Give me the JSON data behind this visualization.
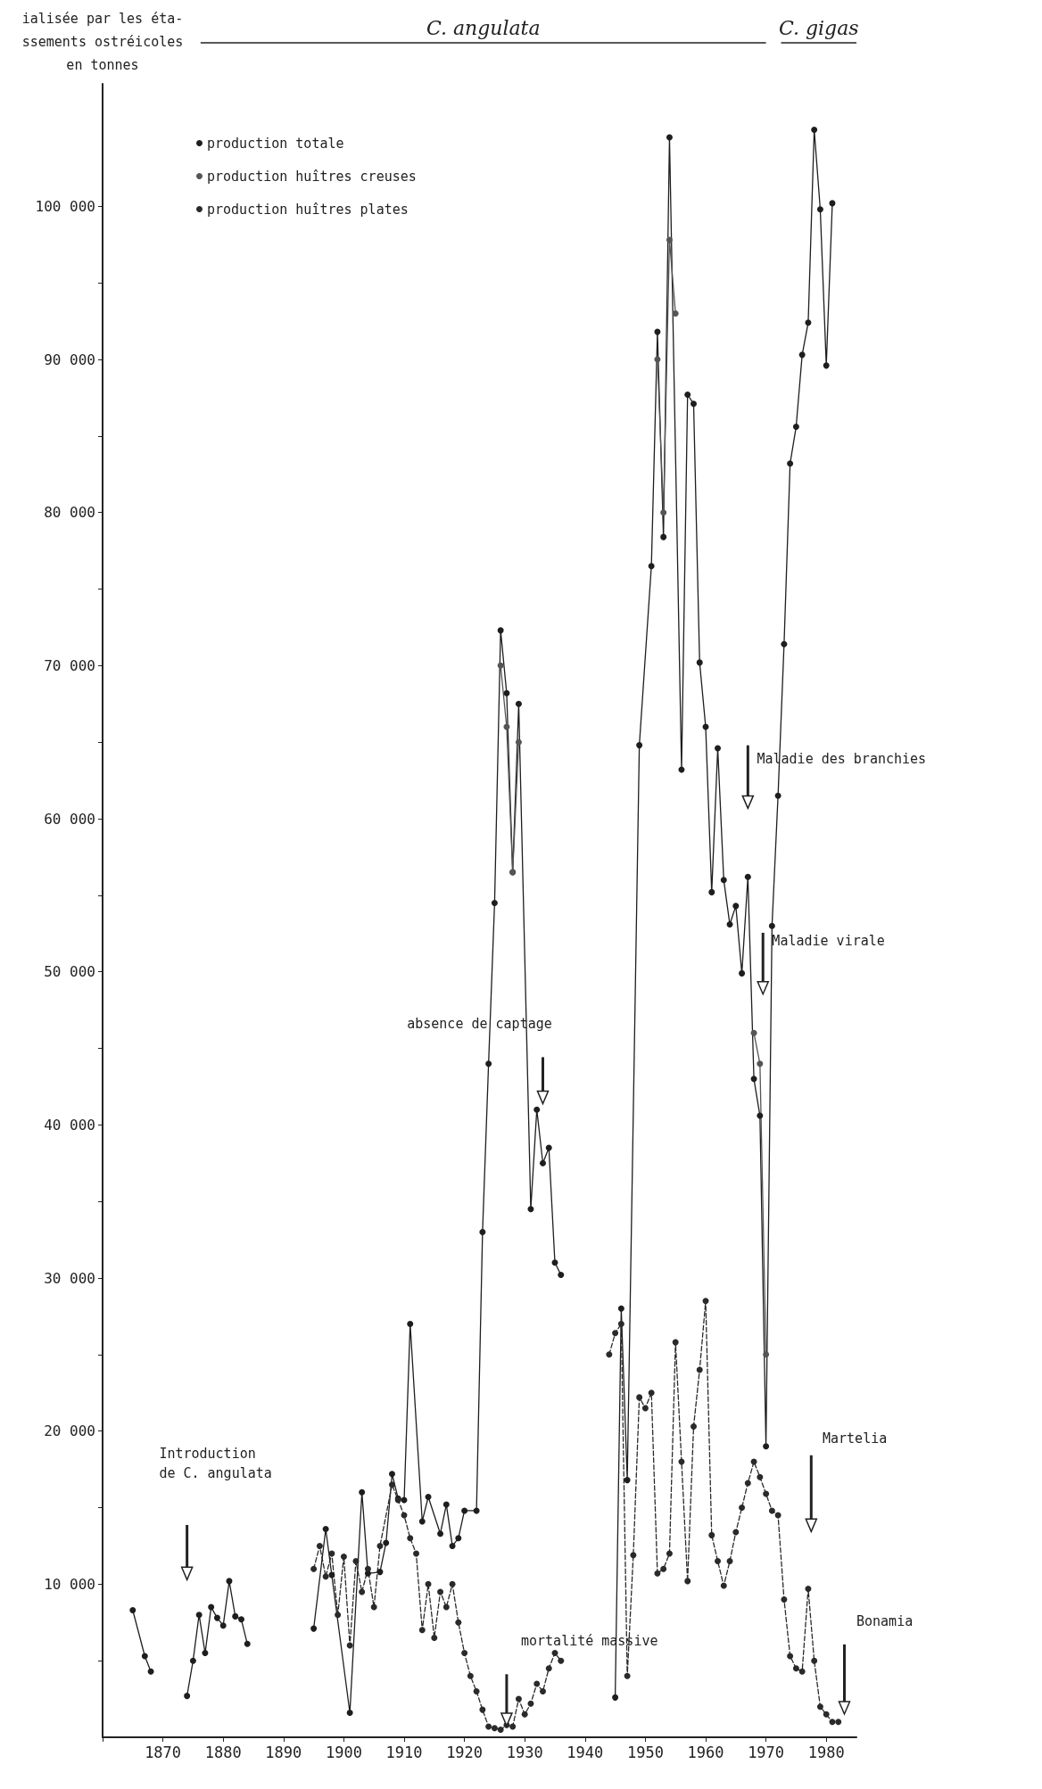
{
  "chart_data": {
    "type": "line",
    "ylabel": "ialisée par les éta-\nssements ostréicoles\nen tonnes",
    "xlim": [
      1860,
      1985
    ],
    "xticks": [
      {
        "value": 1860,
        "label": null
      },
      1870,
      1880,
      1890,
      1900,
      1910,
      1920,
      1930,
      1940,
      1950,
      1960,
      1970,
      1980
    ],
    "ylim": [
      0,
      108000
    ],
    "yticks": [
      {
        "value": 5000,
        "label": null
      },
      {
        "value": 10000,
        "label": "10 000"
      },
      {
        "value": 15000,
        "label": null
      },
      {
        "value": 20000,
        "label": "20 000"
      },
      {
        "value": 25000,
        "label": null
      },
      {
        "value": 30000,
        "label": "30 000"
      },
      {
        "value": 35000,
        "label": null
      },
      {
        "value": 40000,
        "label": "40 000"
      },
      {
        "value": 45000,
        "label": null
      },
      {
        "value": 50000,
        "label": "50 000"
      },
      {
        "value": 55000,
        "label": null
      },
      {
        "value": 60000,
        "label": "60 000"
      },
      {
        "value": 65000,
        "label": null
      },
      {
        "value": 70000,
        "label": "70 000"
      },
      {
        "value": 75000,
        "label": null
      },
      {
        "value": 80000,
        "label": "80 000"
      },
      {
        "value": 85000,
        "label": null
      },
      {
        "value": 90000,
        "label": "90 000"
      },
      {
        "value": 95000,
        "label": null
      },
      {
        "value": 100000,
        "label": "100 000"
      }
    ],
    "grid": false,
    "legend": "top left",
    "marker": "circle",
    "series": [
      {
        "name": "production totale",
        "color": "#1e1e1e",
        "line_style": "solid",
        "x": [
          1865,
          1867,
          1868,
          1870,
          1874,
          1875,
          1876,
          1877,
          1878,
          1879,
          1880,
          1881,
          1882,
          1883,
          1884,
          1890,
          1895,
          1897,
          1898,
          1901,
          1903,
          1904,
          1906,
          1907,
          1908,
          1909,
          1910,
          1911,
          1913,
          1914,
          1916,
          1917,
          1918,
          1919,
          1920,
          1922,
          1923,
          1924,
          1925,
          1926,
          1927,
          1928,
          1929,
          1931,
          1932,
          1933,
          1934,
          1935,
          1936,
          1940,
          1945,
          1946,
          1947,
          1949,
          1951,
          1952,
          1953,
          1954,
          1956,
          1957,
          1958,
          1959,
          1960,
          1961,
          1962,
          1963,
          1964,
          1965,
          1966,
          1967,
          1968,
          1969,
          1970,
          1971,
          1972,
          1973,
          1974,
          1975,
          1976,
          1977,
          1978,
          1979,
          1980,
          1981
        ],
        "values": [
          8300,
          5300,
          4300,
          null,
          2700,
          5000,
          8000,
          5500,
          8500,
          7800,
          7300,
          10200,
          7900,
          7700,
          6100,
          null,
          7100,
          13600,
          10600,
          1600,
          16000,
          10700,
          10800,
          12700,
          17200,
          15600,
          15500,
          27000,
          14100,
          15700,
          13300,
          15200,
          12500,
          13000,
          14800,
          14800,
          33000,
          44000,
          54500,
          72300,
          68200,
          56500,
          67500,
          34500,
          41000,
          37500,
          38500,
          31000,
          30200,
          null,
          2600,
          28000,
          16800,
          64800,
          76500,
          91800,
          78400,
          104500,
          63200,
          87700,
          87100,
          70200,
          66000,
          55200,
          64600,
          56000,
          53100,
          54300,
          49900,
          56200,
          43000,
          40600,
          19000,
          53000,
          61500,
          71400,
          83200,
          85600,
          90300,
          92400,
          105000,
          99800,
          89600,
          100200
        ]
      },
      {
        "name": "production huîtres creuses",
        "color": "#555555",
        "line_style": "solid",
        "x": [
          1926,
          1927,
          1928,
          1929,
          1940,
          1952,
          1953,
          1954,
          1955,
          1960,
          1968,
          1969,
          1970
        ],
        "values": [
          70000,
          66000,
          56500,
          65000,
          null,
          90000,
          80000,
          97800,
          93000,
          null,
          46000,
          44000,
          25000
        ]
      },
      {
        "name": "production huîtres plates",
        "color": "#2a2a2a",
        "line_style": "dashed",
        "x": [
          1895,
          1896,
          1897,
          1898,
          1899,
          1900,
          1901,
          1902,
          1903,
          1904,
          1905,
          1906,
          1908,
          1909,
          1910,
          1911,
          1912,
          1913,
          1914,
          1915,
          1916,
          1917,
          1918,
          1919,
          1920,
          1921,
          1922,
          1923,
          1924,
          1925,
          1926,
          1927,
          1928,
          1929,
          1930,
          1931,
          1932,
          1933,
          1934,
          1935,
          1936,
          1940,
          1944,
          1945,
          1946,
          1947,
          1948,
          1949,
          1950,
          1951,
          1952,
          1953,
          1954,
          1955,
          1956,
          1957,
          1958,
          1959,
          1960,
          1961,
          1962,
          1963,
          1964,
          1965,
          1966,
          1967,
          1968,
          1969,
          1970,
          1971,
          1972,
          1973,
          1974,
          1975,
          1976,
          1977,
          1978,
          1979,
          1980,
          1981,
          1982
        ],
        "values": [
          11000,
          12500,
          10500,
          12000,
          8000,
          11800,
          6000,
          11500,
          9500,
          11000,
          8500,
          12500,
          16500,
          15500,
          14500,
          13000,
          12000,
          7000,
          10000,
          6500,
          9500,
          8500,
          10000,
          7500,
          5500,
          4000,
          3000,
          1800,
          700,
          600,
          500,
          800,
          700,
          2500,
          1500,
          2200,
          3500,
          3000,
          4500,
          5500,
          5000,
          null,
          25000,
          26400,
          27000,
          4000,
          11900,
          22200,
          21500,
          22500,
          10700,
          11000,
          12000,
          25800,
          18000,
          10200,
          20300,
          24000,
          28500,
          13200,
          11500,
          9900,
          11500,
          13400,
          15000,
          16600,
          18000,
          17000,
          15900,
          14800,
          14500,
          9000,
          5300,
          4500,
          4300,
          9700,
          5000,
          2000,
          1500,
          1000,
          1000
        ]
      }
    ],
    "annotations": [
      "C. angulata",
      "C. gigas",
      "Introduction de C. angulata",
      "mortalité massive",
      "absence de captage",
      "Maladie des branchies",
      "Maladie virale",
      "Martelia",
      "Bonamia"
    ]
  }
}
